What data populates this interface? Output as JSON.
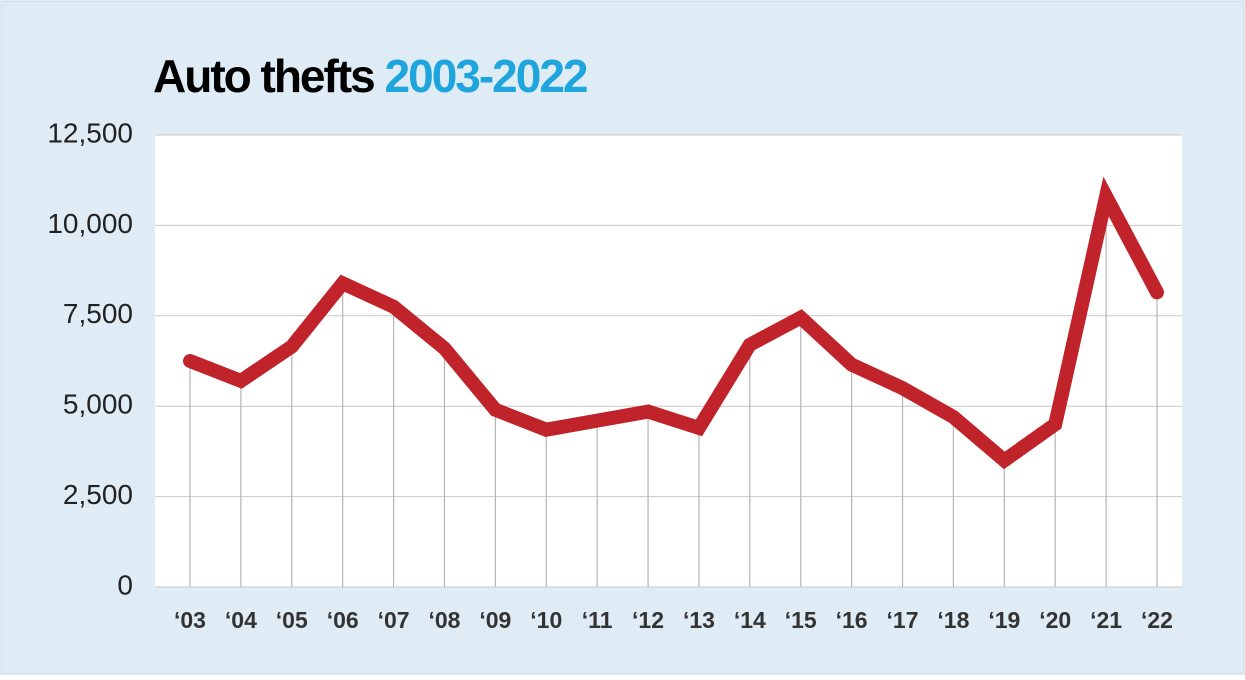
{
  "chart_data": {
    "type": "line",
    "title": "Auto thefts",
    "title_accent": "2003-2022",
    "title_accent_color": "#1ea5de",
    "categories": [
      "‘03",
      "‘04",
      "‘05",
      "‘06",
      "‘07",
      "‘08",
      "‘09",
      "‘10",
      "‘11",
      "‘12",
      "‘13",
      "‘14",
      "‘15",
      "‘16",
      "‘17",
      "‘18",
      "‘19",
      "‘20",
      "‘21",
      "‘22"
    ],
    "series": [
      {
        "color": "#c1232b",
        "values": [
          6250,
          5700,
          6650,
          8400,
          7750,
          6600,
          4900,
          4350,
          4600,
          4850,
          4400,
          6700,
          7450,
          6150,
          5500,
          4700,
          3500,
          4500,
          10800,
          8150
        ]
      }
    ],
    "ylim": [
      0,
      12500
    ],
    "yticks": [
      0,
      {
        "value": 2500,
        "label": "2,500"
      },
      {
        "value": 5000,
        "label": "5,000"
      },
      {
        "value": 7500,
        "label": "7,500"
      },
      {
        "value": 10000,
        "label": "10,000"
      },
      {
        "value": 12500,
        "label": "12,500"
      }
    ],
    "grid": true
  }
}
